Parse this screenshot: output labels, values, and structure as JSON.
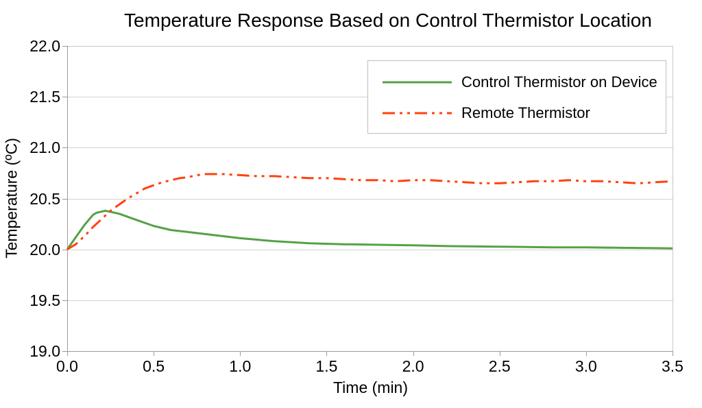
{
  "chart_data": {
    "type": "line",
    "title": "Temperature Response Based on Control Thermistor Location",
    "xlabel": "Time (min)",
    "ylabel": "Temperature (ºC)",
    "xlim": [
      0,
      3.5
    ],
    "ylim": [
      19.0,
      22.0
    ],
    "x_ticks": [
      "0.0",
      "0.5",
      "1.0",
      "1.5",
      "2.0",
      "2.5",
      "3.0",
      "3.5"
    ],
    "y_ticks": [
      "22.0",
      "21.5",
      "21.0",
      "20.5",
      "20.0",
      "19.5",
      "19.0"
    ],
    "grid": "horizontal",
    "grid_color": "#d2d2d2",
    "axis_color": "#9b9b9b",
    "border_color": "#c8c8c8",
    "legend_position": "top-right-inside",
    "series": [
      {
        "name": "Control Thermistor on Device",
        "color": "#55A146",
        "line_style": "solid",
        "dash": "",
        "x": [
          0,
          0.05,
          0.1,
          0.15,
          0.17,
          0.22,
          0.3,
          0.4,
          0.5,
          0.6,
          0.7,
          0.8,
          0.9,
          1.0,
          1.2,
          1.4,
          1.6,
          1.8,
          2.0,
          2.2,
          2.4,
          2.6,
          2.8,
          3.0,
          3.2,
          3.4,
          3.5
        ],
        "y": [
          20.0,
          20.12,
          20.24,
          20.34,
          20.36,
          20.38,
          20.35,
          20.29,
          20.23,
          20.19,
          20.17,
          20.15,
          20.13,
          20.11,
          20.08,
          20.06,
          20.05,
          20.045,
          20.04,
          20.032,
          20.028,
          20.025,
          20.02,
          20.02,
          20.015,
          20.012,
          20.01
        ]
      },
      {
        "name": "Remote Thermistor",
        "color": "#FF420E",
        "line_style": "dash-dot-dot",
        "dash": "18 7 4 7 4 7",
        "x": [
          0,
          0.05,
          0.1,
          0.15,
          0.2,
          0.25,
          0.3,
          0.35,
          0.4,
          0.45,
          0.5,
          0.55,
          0.6,
          0.65,
          0.7,
          0.75,
          0.8,
          0.9,
          1.0,
          1.1,
          1.2,
          1.3,
          1.4,
          1.5,
          1.6,
          1.7,
          1.8,
          1.9,
          2.0,
          2.1,
          2.2,
          2.3,
          2.4,
          2.5,
          2.6,
          2.7,
          2.8,
          2.9,
          3.0,
          3.1,
          3.2,
          3.3,
          3.4,
          3.5
        ],
        "y": [
          20.0,
          20.05,
          20.13,
          20.22,
          20.3,
          20.38,
          20.44,
          20.5,
          20.55,
          20.6,
          20.63,
          20.66,
          20.68,
          20.7,
          20.71,
          20.73,
          20.74,
          20.74,
          20.73,
          20.72,
          20.72,
          20.71,
          20.7,
          20.7,
          20.69,
          20.68,
          20.68,
          20.67,
          20.68,
          20.68,
          20.67,
          20.66,
          20.65,
          20.65,
          20.66,
          20.67,
          20.67,
          20.68,
          20.67,
          20.67,
          20.66,
          20.65,
          20.66,
          20.67
        ]
      }
    ]
  }
}
